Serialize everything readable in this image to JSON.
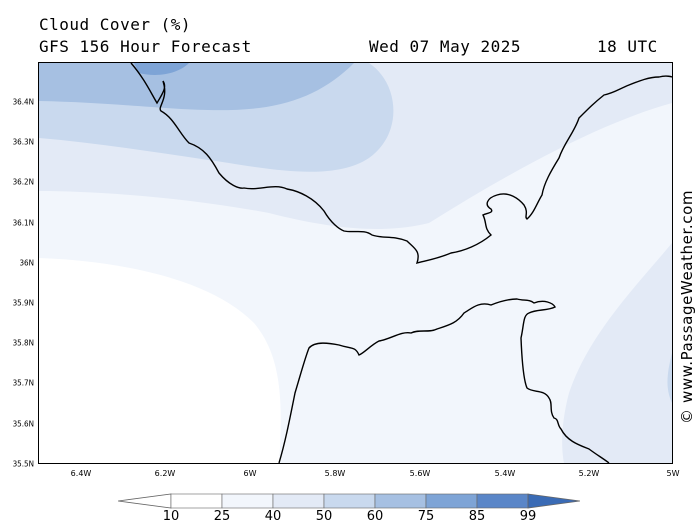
{
  "header": {
    "title": "Cloud Cover (%)",
    "model": "GFS 156 Hour Forecast",
    "date": "Wed 07 May 2025",
    "time": "18 UTC"
  },
  "map": {
    "lat_labels": [
      "36.4N",
      "36.3N",
      "36.2N",
      "36.1N",
      "36N",
      "35.9N",
      "35.8N",
      "35.7N",
      "35.6N",
      "35.5N"
    ],
    "lon_labels": [
      "6.4W",
      "6.2W",
      "6W",
      "5.8W",
      "5.6W",
      "5.4W",
      "5.2W",
      "5W"
    ],
    "credit": "© www.PassageWeather.com",
    "colors": {
      "land_outline": "#000000",
      "band_10": "#ffffff",
      "band_25": "#f2f6fc",
      "band_40": "#e3eaf6",
      "band_50": "#c9d9ee",
      "band_60": "#a6c0e2",
      "band_75": "#7ea4d6"
    }
  },
  "legend": {
    "levels": [
      "10",
      "25",
      "40",
      "50",
      "60",
      "75",
      "85",
      "99"
    ],
    "colors": [
      "#ffffff",
      "#f2f6fc",
      "#e3eaf6",
      "#c9d9ee",
      "#a6c0e2",
      "#7ea4d6",
      "#5a86c8",
      "#3a6bb5",
      "#3a6bb5"
    ]
  }
}
